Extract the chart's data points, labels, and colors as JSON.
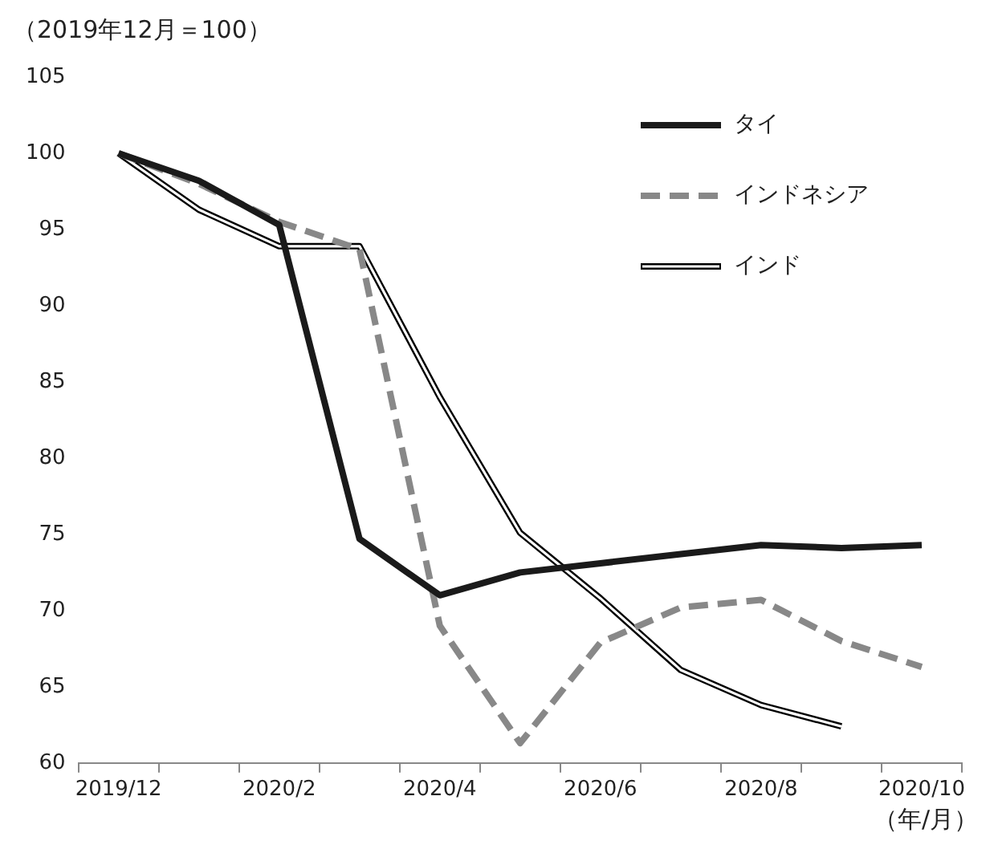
{
  "chart_data": {
    "type": "line",
    "ylabel": "（2019年12月＝100）",
    "xlabel": "（年/月）",
    "categories": [
      "2019/12",
      null,
      "2020/2",
      null,
      "2020/4",
      null,
      "2020/6",
      null,
      "2020/8",
      null,
      "2020/10"
    ],
    "series": [
      {
        "name": "タイ",
        "color": "#1a1a1a",
        "line_style": "solid",
        "values": [
          100,
          98.2,
          95.3,
          74.7,
          71.0,
          72.5,
          73.1,
          73.7,
          74.3,
          74.1,
          74.3
        ]
      },
      {
        "name": "インドネシア",
        "color": "#888888",
        "line_style": "dashed",
        "values": [
          100,
          98.0,
          95.5,
          93.7,
          69.0,
          61.3,
          67.9,
          70.2,
          70.7,
          68.0,
          66.3
        ]
      },
      {
        "name": "インド",
        "color": "#ffffff",
        "line_style": "solid",
        "values": [
          100,
          96.3,
          93.9,
          93.9,
          84.0,
          75.1,
          70.8,
          66.1,
          63.8,
          62.4,
          null
        ]
      }
    ],
    "ylim": [
      60,
      105
    ],
    "yticks": [
      60,
      65,
      70,
      75,
      80,
      85,
      90,
      95,
      100,
      105
    ],
    "grid": false,
    "legend": "top right",
    "marker": "none"
  }
}
